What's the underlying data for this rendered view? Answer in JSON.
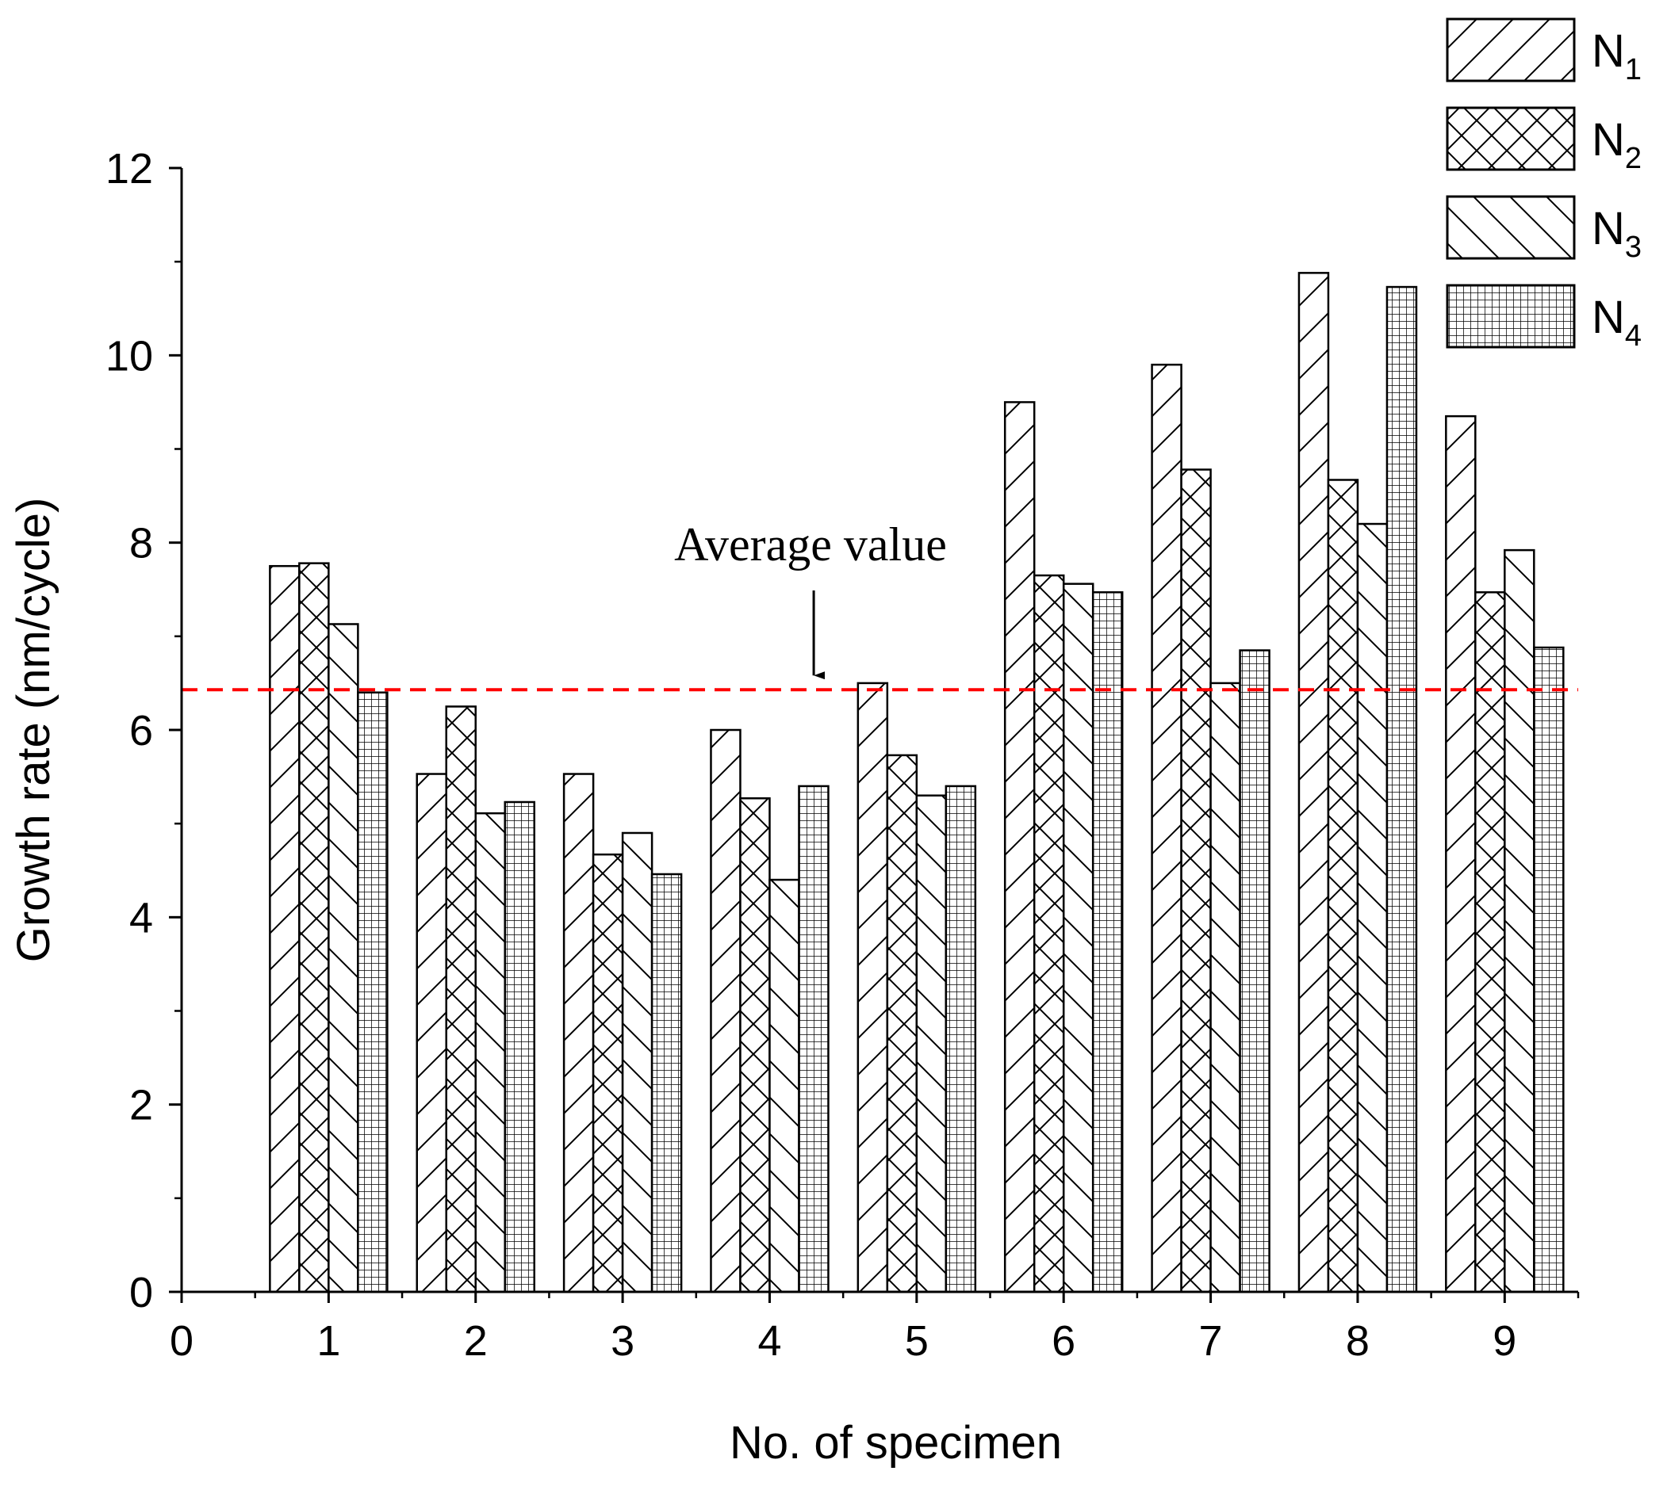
{
  "chart_data": {
    "type": "bar",
    "xlabel": "No. of specimen",
    "ylabel": "Growth rate (nm/cycle)",
    "xlim": [
      0,
      9.5
    ],
    "ylim": [
      0,
      12
    ],
    "x_ticks": [
      "0",
      "1",
      "2",
      "3",
      "4",
      "5",
      "6",
      "7",
      "8",
      "9"
    ],
    "y_ticks": [
      "0",
      "2",
      "4",
      "6",
      "8",
      "10",
      "12"
    ],
    "categories": [
      1,
      2,
      3,
      4,
      5,
      6,
      7,
      8,
      9
    ],
    "series": [
      {
        "name": "N1",
        "label_base": "N",
        "label_sub": "1",
        "pattern": "forward-diagonal-hatch",
        "values": [
          7.75,
          5.53,
          5.53,
          6.0,
          6.5,
          9.5,
          9.9,
          10.88,
          9.35
        ]
      },
      {
        "name": "N2",
        "label_base": "N",
        "label_sub": "2",
        "pattern": "cross-hatch",
        "values": [
          7.78,
          6.25,
          4.67,
          5.27,
          5.73,
          7.65,
          8.78,
          8.67,
          7.47
        ]
      },
      {
        "name": "N3",
        "label_base": "N",
        "label_sub": "3",
        "pattern": "backward-diagonal-hatch",
        "values": [
          7.13,
          5.11,
          4.9,
          4.4,
          5.3,
          7.56,
          6.5,
          8.2,
          7.92
        ]
      },
      {
        "name": "N4",
        "label_base": "N",
        "label_sub": "4",
        "pattern": "grid-hatch",
        "values": [
          6.4,
          5.23,
          4.46,
          5.4,
          5.4,
          7.47,
          6.85,
          10.73,
          6.88
        ]
      }
    ],
    "reference_line": {
      "value": 6.43,
      "style": "dashed",
      "color": "#ff0000"
    },
    "annotation": {
      "text": "Average value",
      "arrow_to_x": 4.3
    },
    "legend_position": "top-right",
    "grid": false
  }
}
